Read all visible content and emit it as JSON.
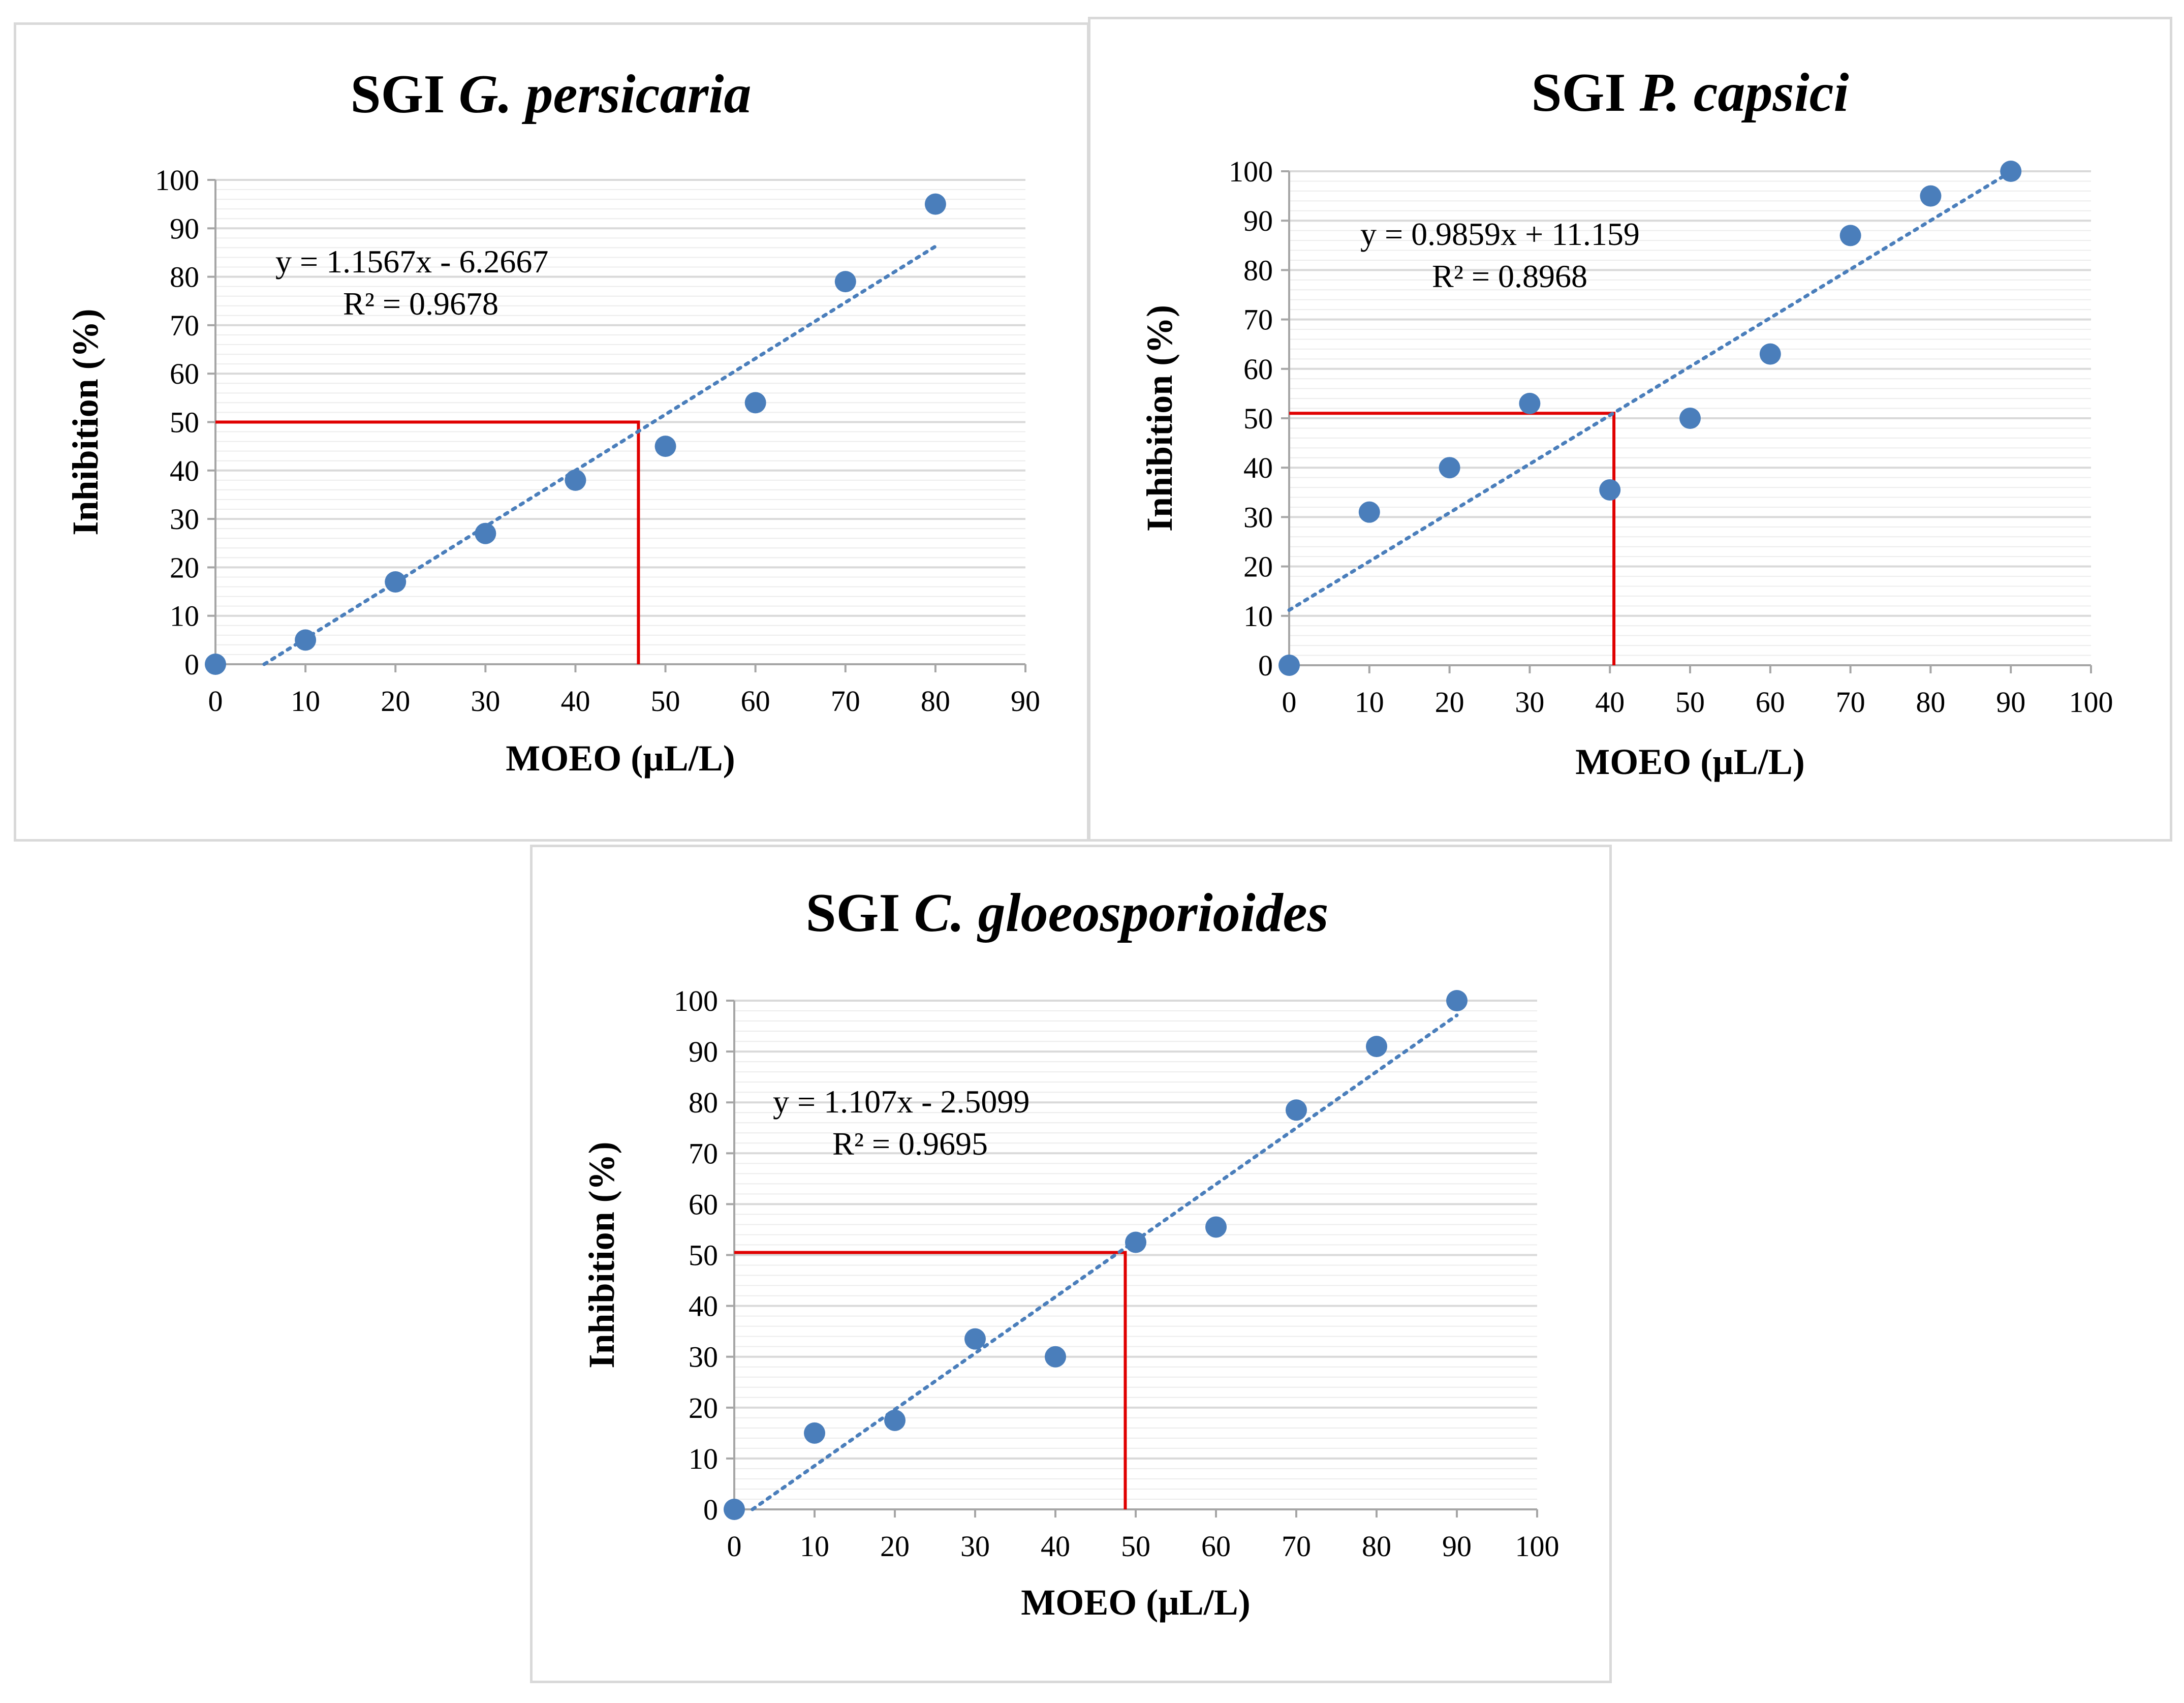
{
  "chart_data": [
    {
      "type": "scatter",
      "title": "SGI",
      "title_species": "G. persicaria",
      "xlabel": "MOEO (µL/L)",
      "ylabel": "Inhibition  (%)",
      "xlim": [
        0,
        90
      ],
      "ylim": [
        0,
        100
      ],
      "xticks": [
        "0",
        "10",
        "20",
        "30",
        "40",
        "50",
        "60",
        "70",
        "80",
        "90"
      ],
      "yticks": [
        "0",
        "10",
        "20",
        "30",
        "40",
        "50",
        "60",
        "70",
        "80",
        "90",
        "100"
      ],
      "grid": true,
      "points": {
        "x": [
          0,
          10,
          20,
          30,
          40,
          50,
          60,
          70,
          80
        ],
        "y": [
          0,
          5,
          17,
          27,
          38,
          45,
          54,
          79,
          95
        ]
      },
      "trendline": {
        "slope": 1.1567,
        "intercept": -6.2667,
        "x_range": [
          0,
          80
        ]
      },
      "equation": "y = 1.1567x - 6.2667",
      "r2": "R² = 0.9678",
      "ic50": {
        "x": 47,
        "y": 50
      },
      "colors": {
        "point": "#4a7ebb",
        "trend": "#4a7ebb",
        "marker_line": "#e00000",
        "grid": "#d9d9d9"
      }
    },
    {
      "type": "scatter",
      "title": "SGI",
      "title_species": "P. capsici",
      "xlabel": "MOEO (µL/L)",
      "ylabel": "Inhibition  (%)",
      "xlim": [
        0,
        100
      ],
      "ylim": [
        0,
        100
      ],
      "xticks": [
        "0",
        "10",
        "20",
        "30",
        "40",
        "50",
        "60",
        "70",
        "80",
        "90",
        "100"
      ],
      "yticks": [
        "0",
        "10",
        "20",
        "30",
        "40",
        "50",
        "60",
        "70",
        "80",
        "90",
        "100"
      ],
      "grid": true,
      "points": {
        "x": [
          0,
          10,
          20,
          30,
          40,
          50,
          60,
          70,
          80,
          90
        ],
        "y": [
          0,
          31,
          40,
          53,
          35.5,
          50,
          63,
          87,
          95,
          100
        ]
      },
      "trendline": {
        "slope": 0.9859,
        "intercept": 11.159,
        "x_range": [
          0,
          90
        ]
      },
      "equation": "y = 0.9859x + 11.159",
      "r2": "R² = 0.8968",
      "ic50": {
        "x": 40.5,
        "y": 51
      },
      "colors": {
        "point": "#4a7ebb",
        "trend": "#4a7ebb",
        "marker_line": "#e00000",
        "grid": "#d9d9d9"
      }
    },
    {
      "type": "scatter",
      "title": "SGI",
      "title_species": "C. gloeosporioides",
      "xlabel": "MOEO (µL/L)",
      "ylabel": "Inhibition  (%)",
      "xlim": [
        0,
        100
      ],
      "ylim": [
        0,
        100
      ],
      "xticks": [
        "0",
        "10",
        "20",
        "30",
        "40",
        "50",
        "60",
        "70",
        "80",
        "90",
        "100"
      ],
      "yticks": [
        "0",
        "10",
        "20",
        "30",
        "40",
        "50",
        "60",
        "70",
        "80",
        "90",
        "100"
      ],
      "grid": true,
      "points": {
        "x": [
          0,
          10,
          20,
          30,
          40,
          50,
          60,
          70,
          80,
          90
        ],
        "y": [
          0,
          15,
          17.5,
          33.5,
          30,
          52.5,
          55.5,
          78.5,
          91,
          100
        ]
      },
      "trendline": {
        "slope": 1.107,
        "intercept": -2.5099,
        "x_range": [
          0,
          90
        ]
      },
      "equation": "y = 1.107x - 2.5099",
      "r2": "R² = 0.9695",
      "ic50": {
        "x": 48.7,
        "y": 50.5
      },
      "colors": {
        "point": "#4a7ebb",
        "trend": "#4a7ebb",
        "marker_line": "#e00000",
        "grid": "#d9d9d9"
      }
    }
  ]
}
